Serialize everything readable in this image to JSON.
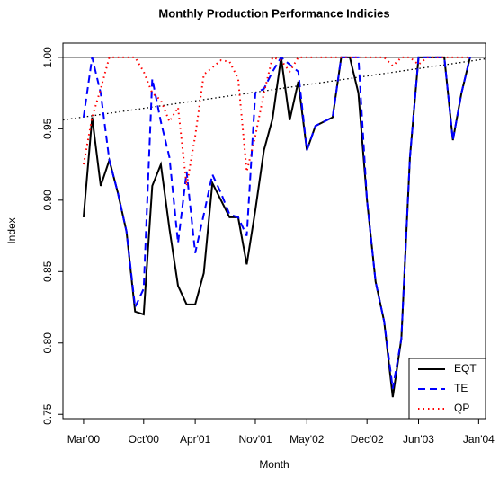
{
  "chart_data": {
    "type": "line",
    "title": "Monthly Production Performance Indicies",
    "x_label": "Month",
    "y_label": "Index",
    "x": [
      2,
      3,
      4,
      5,
      6,
      7,
      8,
      9,
      10,
      11,
      12,
      13,
      14,
      15,
      16,
      17,
      18,
      19,
      20,
      21,
      22,
      23,
      24,
      25,
      26,
      27,
      28,
      29,
      30,
      31,
      32,
      33,
      34,
      35,
      36,
      37,
      38,
      39,
      40,
      41,
      42,
      43,
      44,
      45,
      46,
      47
    ],
    "series": [
      {
        "name": "EQT",
        "color": "#000000",
        "dash": "solid",
        "values": [
          0.888,
          0.958,
          0.91,
          0.928,
          0.905,
          0.878,
          0.822,
          0.82,
          0.91,
          0.925,
          0.88,
          0.84,
          0.827,
          0.827,
          0.849,
          0.912,
          0.9,
          0.888,
          0.888,
          0.855,
          0.893,
          0.935,
          0.957,
          1.0,
          0.956,
          0.983,
          0.935,
          0.952,
          0.955,
          0.958,
          1.0,
          1.0,
          0.975,
          0.9,
          0.843,
          0.815,
          0.762,
          0.803,
          0.93,
          1.0,
          1.0,
          1.0,
          1.0,
          0.942,
          0.975,
          1.0
        ]
      },
      {
        "name": "TE",
        "color": "#0000ff",
        "dash": "dashed",
        "values": [
          0.958,
          1.0,
          0.975,
          0.928,
          0.905,
          0.878,
          0.825,
          0.838,
          0.985,
          0.955,
          0.93,
          0.87,
          0.92,
          0.863,
          0.89,
          0.918,
          0.905,
          0.89,
          0.888,
          0.875,
          0.975,
          0.978,
          0.99,
          1.0,
          0.995,
          0.99,
          0.935,
          0.952,
          0.955,
          0.958,
          1.0,
          1.0,
          1.0,
          0.9,
          0.843,
          0.815,
          0.768,
          0.803,
          0.93,
          1.0,
          1.0,
          1.0,
          1.0,
          0.942,
          0.975,
          1.0
        ]
      },
      {
        "name": "QP",
        "color": "#ff0000",
        "dash": "dotted",
        "values": [
          0.925,
          0.958,
          0.978,
          1.0,
          1.0,
          1.0,
          1.0,
          0.99,
          0.975,
          0.97,
          0.955,
          0.965,
          0.91,
          0.945,
          0.988,
          0.993,
          0.998,
          0.997,
          0.985,
          0.92,
          0.945,
          0.975,
          1.0,
          0.998,
          0.99,
          1.0,
          1.0,
          1.0,
          1.0,
          1.0,
          1.0,
          1.0,
          1.0,
          1.0,
          1.0,
          1.0,
          0.994,
          1.0,
          1.0,
          0.995,
          1.0,
          1.0,
          1.0,
          1.0,
          1.0,
          1.0
        ]
      }
    ],
    "reference_line": 1.0,
    "trend": {
      "intercept": 0.9565,
      "slope": 0.00087
    },
    "xlim": [
      -0.4,
      48.8
    ],
    "ylim": [
      0.747,
      1.01
    ],
    "xticks": [
      {
        "value": 2,
        "label": "Mar'00"
      },
      {
        "value": 9,
        "label": "Oct'00"
      },
      {
        "value": 15,
        "label": "Apr'01"
      },
      {
        "value": 22,
        "label": "Nov'01"
      },
      {
        "value": 28,
        "label": "May'02"
      },
      {
        "value": 35,
        "label": "Dec'02"
      },
      {
        "value": 41,
        "label": "Jun'03"
      },
      {
        "value": 48,
        "label": "Jan'04"
      }
    ],
    "yticks": [
      {
        "value": 0.75,
        "label": "0.75"
      },
      {
        "value": 0.8,
        "label": "0.80"
      },
      {
        "value": 0.85,
        "label": "0.85"
      },
      {
        "value": 0.9,
        "label": "0.90"
      },
      {
        "value": 0.95,
        "label": "0.95"
      },
      {
        "value": 1.0,
        "label": "1.00"
      }
    ],
    "legend": "bottom-right",
    "grid": false
  }
}
